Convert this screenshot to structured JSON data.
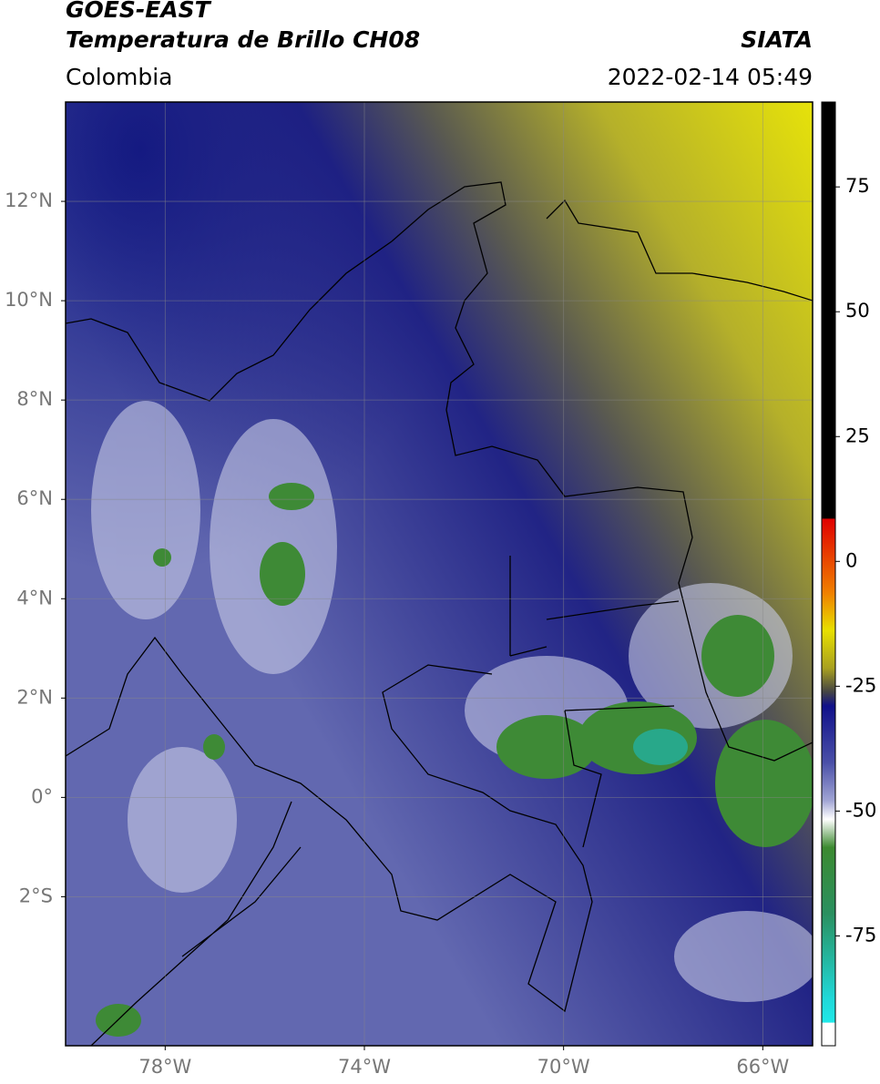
{
  "header": {
    "title_line1": "GOES-EAST",
    "title_line2": "Temperatura de Brillo CH08",
    "source": "SIATA",
    "region": "Colombia",
    "datetime": "2022-02-14 05:49"
  },
  "map": {
    "xlim": [
      -80,
      -65
    ],
    "ylim": [
      -5,
      14
    ],
    "xticks": [
      {
        "value": -78,
        "label": "78°W"
      },
      {
        "value": -74,
        "label": "74°W"
      },
      {
        "value": -70,
        "label": "70°W"
      },
      {
        "value": -66,
        "label": "66°W"
      }
    ],
    "yticks": [
      {
        "value": 12,
        "label": "12°N"
      },
      {
        "value": 10,
        "label": "10°N"
      },
      {
        "value": 8,
        "label": "8°N"
      },
      {
        "value": 6,
        "label": "6°N"
      },
      {
        "value": 4,
        "label": "4°N"
      },
      {
        "value": 2,
        "label": "2°N"
      },
      {
        "value": 0,
        "label": "0°"
      },
      {
        "value": -2,
        "label": "2°S"
      }
    ]
  },
  "colorbar": {
    "lim": [
      -97,
      92
    ],
    "ticks": [
      75,
      50,
      25,
      0,
      -25,
      -50,
      -75
    ]
  }
}
